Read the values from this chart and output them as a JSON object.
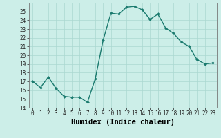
{
  "x": [
    0,
    1,
    2,
    3,
    4,
    5,
    6,
    7,
    8,
    9,
    10,
    11,
    12,
    13,
    14,
    15,
    16,
    17,
    18,
    19,
    20,
    21,
    22,
    23
  ],
  "y": [
    17,
    16.3,
    17.5,
    16.2,
    15.3,
    15.2,
    15.2,
    14.6,
    17.3,
    21.7,
    24.8,
    24.7,
    25.5,
    25.6,
    25.2,
    24.1,
    24.7,
    23.1,
    22.5,
    21.5,
    21.0,
    19.5,
    19.0,
    19.1
  ],
  "xlabel": "Humidex (Indice chaleur)",
  "line_color": "#1a7a6e",
  "marker": "D",
  "marker_size": 2.0,
  "line_width": 1.0,
  "bg_color": "#cceee8",
  "grid_color": "#aad8d0",
  "xlim": [
    -0.5,
    23.5
  ],
  "ylim": [
    14,
    26
  ],
  "yticks": [
    14,
    15,
    16,
    17,
    18,
    19,
    20,
    21,
    22,
    23,
    24,
    25
  ],
  "xticks": [
    0,
    1,
    2,
    3,
    4,
    5,
    6,
    7,
    8,
    9,
    10,
    11,
    12,
    13,
    14,
    15,
    16,
    17,
    18,
    19,
    20,
    21,
    22,
    23
  ],
  "xtick_labels": [
    "0",
    "1",
    "2",
    "3",
    "4",
    "5",
    "6",
    "7",
    "8",
    "9",
    "10",
    "11",
    "12",
    "13",
    "14",
    "15",
    "16",
    "17",
    "18",
    "19",
    "20",
    "21",
    "22",
    "23"
  ],
  "tick_fontsize": 5.5,
  "xlabel_fontsize": 7.5
}
